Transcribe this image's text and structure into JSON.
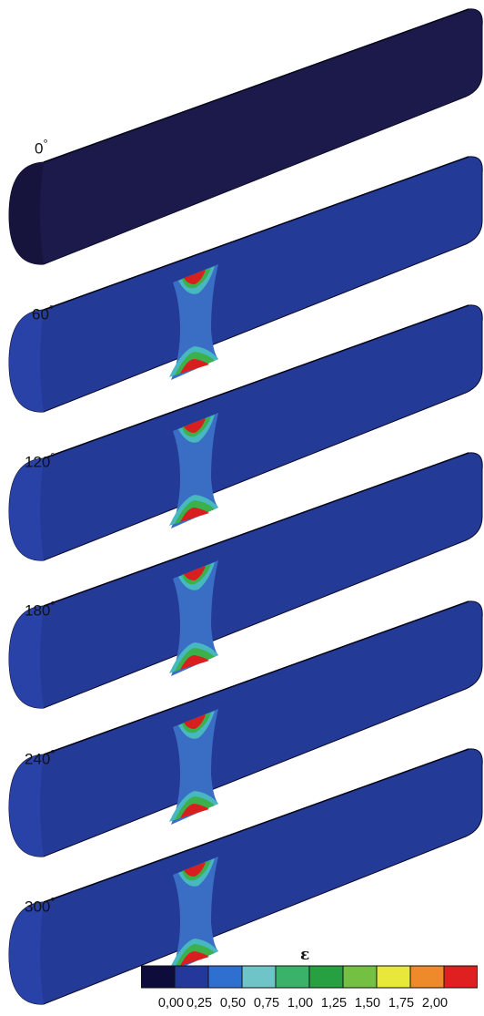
{
  "angles": [
    "0",
    "60",
    "120",
    "180",
    "240",
    "300"
  ],
  "degree_symbol": "°",
  "legend": {
    "symbol": "ε",
    "ticks": [
      "0,00",
      "0,25",
      "0,50",
      "0,75",
      "1,00",
      "1,25",
      "1,50",
      "1,75",
      "2,00"
    ],
    "colors": [
      "#0d0c3b",
      "#24379a",
      "#2f6fd0",
      "#6fc4c8",
      "#3bb26a",
      "#27a041",
      "#74c043",
      "#e8e83a",
      "#ef8a2a",
      "#e02020"
    ]
  },
  "colors": {
    "bar_base_dark": "#1c1a4a",
    "bar_base": "#243a97",
    "band_light": "#3a6ec4",
    "band_cyan": "#48b8c0",
    "band_green": "#3cb04a",
    "band_yellow": "#e6e63a",
    "band_red": "#d81e1e"
  }
}
